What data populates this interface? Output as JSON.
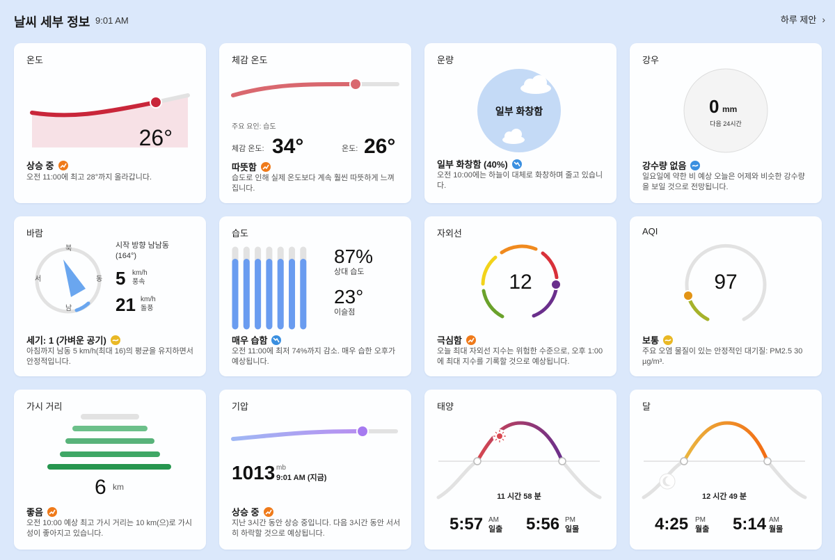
{
  "header": {
    "title": "날씨 세부 정보",
    "time": "9:01 AM",
    "link": "하루 제안"
  },
  "temperature": {
    "title": "온도",
    "value": "26°",
    "status": "상승 중",
    "desc": "오전 11:00에 최고 28°까지 올라갑니다."
  },
  "feels": {
    "title": "체감 온도",
    "factor": "주요 요인: 습도",
    "feels_label": "체감 온도:",
    "feels_value": "34°",
    "temp_label": "온도:",
    "temp_value": "26°",
    "status": "따뜻함",
    "desc": "습도로 인해 실제 온도보다 계속 훨씬 따뜻하게 느껴집니다."
  },
  "cloud": {
    "title": "운량",
    "center": "일부 화창함",
    "status": "일부 화창함 (40%)",
    "desc": "오전 10:00에는 하늘이 대체로 화창하며 줄고 있습니다."
  },
  "precip": {
    "title": "강우",
    "value": "0",
    "unit": "mm",
    "sub": "다음 24시간",
    "status": "강수량 없음",
    "desc": "일요일에 약한 비 예상 오늘은 어제와 비슷한 강수량을 보일 것으로 전망됩니다."
  },
  "wind": {
    "title": "바람",
    "dir_label": "시작 방향 남남동",
    "dir_deg": "(164°)",
    "north": "북",
    "south": "남",
    "west": "서",
    "east": "동",
    "speed": "5",
    "speed_unit": "km/h",
    "speed_label": "풍속",
    "gust": "21",
    "gust_unit": "km/h",
    "gust_label": "돌풍",
    "status": "세기: 1 (가벼운 공기)",
    "desc": "아침까지 남동 5 km/h(최대 16)의 평균을 유지하면서 안정적입니다."
  },
  "humidity": {
    "title": "습도",
    "value": "87%",
    "value_label": "상대 습도",
    "dew": "23°",
    "dew_label": "이슬점",
    "status": "매우 습함",
    "desc": "오전 11:00에 최저 74%까지 감소. 매우 습한 오후가 예상됩니다.",
    "bar_levels": [
      0.95,
      0.95,
      0.95,
      0.95,
      0.95,
      0.95,
      0.95
    ]
  },
  "uv": {
    "title": "자외선",
    "value": "12",
    "status": "극심함",
    "desc": "오늘 최대 자외선 지수는 위험한 수준으로, 오후 1:00에 최대 지수를 기록할 것으로 예상됩니다."
  },
  "aqi": {
    "title": "AQI",
    "value": "97",
    "status": "보통",
    "desc": "주요 오염 물질이 있는 안정적인 대기질: PM2.5 30 µg/m³."
  },
  "visibility": {
    "title": "가시 거리",
    "value": "6",
    "unit": "km",
    "status": "좋음",
    "desc": "오전 10:00 예상 최고 가시 거리는 10 km(으)로 가시성이 좋아지고 있습니다."
  },
  "pressure": {
    "title": "기압",
    "value": "1013",
    "unit": "mb",
    "when": "9:01 AM (지금)",
    "status": "상승 중",
    "desc": "지난 3시간 동안 상승 중입니다. 다음 3시간 동안 서서히 하락할 것으로 예상됩니다."
  },
  "sun": {
    "title": "태양",
    "duration": "11 시간 58 분",
    "rise": "5:57",
    "rise_ampm": "AM",
    "rise_label": "일출",
    "set": "5:56",
    "set_ampm": "PM",
    "set_label": "일몰"
  },
  "moon": {
    "title": "달",
    "duration": "12 시간 49 분",
    "rise": "4:25",
    "rise_ampm": "PM",
    "rise_label": "월출",
    "set": "5:14",
    "set_ampm": "AM",
    "set_label": "월몰"
  }
}
